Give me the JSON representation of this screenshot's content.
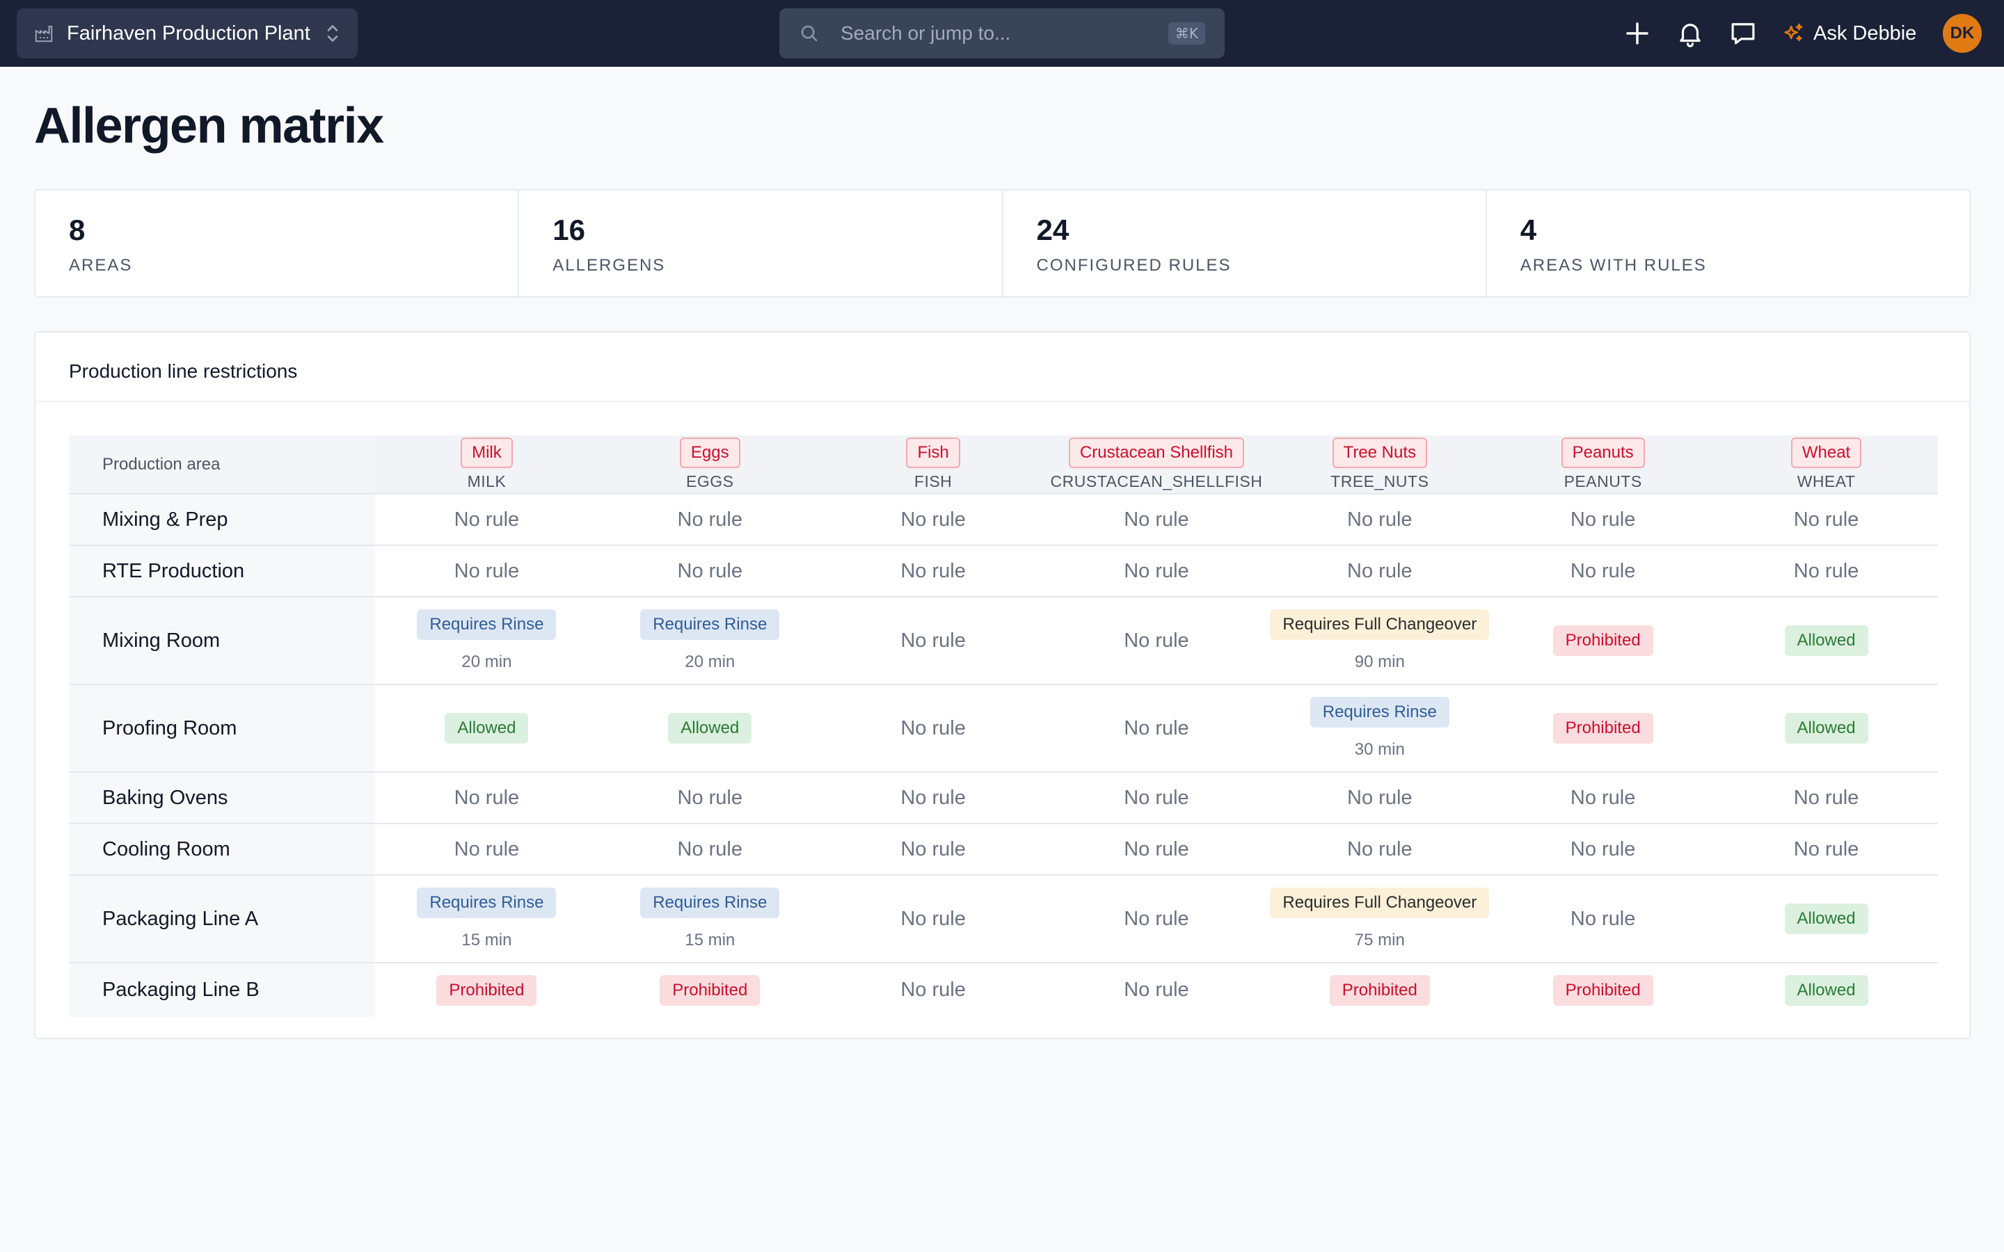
{
  "topbar": {
    "workspace_name": "Fairhaven Production Plant",
    "search_placeholder": "Search or jump to...",
    "search_shortcut": "⌘K",
    "ask_label": "Ask Debbie",
    "avatar_initials": "DK",
    "icons": [
      "factory-icon",
      "chevron-updown-icon",
      "search-icon",
      "plus-icon",
      "bell-icon",
      "chat-icon",
      "sparkle-icon"
    ]
  },
  "page": {
    "title": "Allergen matrix"
  },
  "stats": [
    {
      "value": "8",
      "label": "Areas"
    },
    {
      "value": "16",
      "label": "Allergens"
    },
    {
      "value": "24",
      "label": "Configured rules"
    },
    {
      "value": "4",
      "label": "Areas with rules"
    }
  ],
  "matrix": {
    "card_title": "Production line restrictions",
    "area_header": "Production area",
    "allergens": [
      {
        "name": "Milk",
        "code": "MILK"
      },
      {
        "name": "Eggs",
        "code": "EGGS"
      },
      {
        "name": "Fish",
        "code": "FISH"
      },
      {
        "name": "Crustacean Shellfish",
        "code": "CRUSTACEAN_SHELLFISH"
      },
      {
        "name": "Tree Nuts",
        "code": "TREE_NUTS"
      },
      {
        "name": "Peanuts",
        "code": "PEANUTS"
      },
      {
        "name": "Wheat",
        "code": "WHEAT"
      }
    ],
    "rows": [
      {
        "area": "Mixing & Prep",
        "cells": [
          {
            "type": "none",
            "label": "No rule"
          },
          {
            "type": "none",
            "label": "No rule"
          },
          {
            "type": "none",
            "label": "No rule"
          },
          {
            "type": "none",
            "label": "No rule"
          },
          {
            "type": "none",
            "label": "No rule"
          },
          {
            "type": "none",
            "label": "No rule"
          },
          {
            "type": "none",
            "label": "No rule"
          }
        ]
      },
      {
        "area": "RTE Production",
        "cells": [
          {
            "type": "none",
            "label": "No rule"
          },
          {
            "type": "none",
            "label": "No rule"
          },
          {
            "type": "none",
            "label": "No rule"
          },
          {
            "type": "none",
            "label": "No rule"
          },
          {
            "type": "none",
            "label": "No rule"
          },
          {
            "type": "none",
            "label": "No rule"
          },
          {
            "type": "none",
            "label": "No rule"
          }
        ]
      },
      {
        "area": "Mixing Room",
        "cells": [
          {
            "type": "rinse",
            "label": "Requires Rinse",
            "duration": "20 min"
          },
          {
            "type": "rinse",
            "label": "Requires Rinse",
            "duration": "20 min"
          },
          {
            "type": "none",
            "label": "No rule"
          },
          {
            "type": "none",
            "label": "No rule"
          },
          {
            "type": "full",
            "label": "Requires Full Changeover",
            "duration": "90 min"
          },
          {
            "type": "prohib",
            "label": "Prohibited"
          },
          {
            "type": "allow",
            "label": "Allowed"
          }
        ]
      },
      {
        "area": "Proofing Room",
        "cells": [
          {
            "type": "allow",
            "label": "Allowed"
          },
          {
            "type": "allow",
            "label": "Allowed"
          },
          {
            "type": "none",
            "label": "No rule"
          },
          {
            "type": "none",
            "label": "No rule"
          },
          {
            "type": "rinse",
            "label": "Requires Rinse",
            "duration": "30 min"
          },
          {
            "type": "prohib",
            "label": "Prohibited"
          },
          {
            "type": "allow",
            "label": "Allowed"
          }
        ]
      },
      {
        "area": "Baking Ovens",
        "cells": [
          {
            "type": "none",
            "label": "No rule"
          },
          {
            "type": "none",
            "label": "No rule"
          },
          {
            "type": "none",
            "label": "No rule"
          },
          {
            "type": "none",
            "label": "No rule"
          },
          {
            "type": "none",
            "label": "No rule"
          },
          {
            "type": "none",
            "label": "No rule"
          },
          {
            "type": "none",
            "label": "No rule"
          }
        ]
      },
      {
        "area": "Cooling Room",
        "cells": [
          {
            "type": "none",
            "label": "No rule"
          },
          {
            "type": "none",
            "label": "No rule"
          },
          {
            "type": "none",
            "label": "No rule"
          },
          {
            "type": "none",
            "label": "No rule"
          },
          {
            "type": "none",
            "label": "No rule"
          },
          {
            "type": "none",
            "label": "No rule"
          },
          {
            "type": "none",
            "label": "No rule"
          }
        ]
      },
      {
        "area": "Packaging Line A",
        "cells": [
          {
            "type": "rinse",
            "label": "Requires Rinse",
            "duration": "15 min"
          },
          {
            "type": "rinse",
            "label": "Requires Rinse",
            "duration": "15 min"
          },
          {
            "type": "none",
            "label": "No rule"
          },
          {
            "type": "none",
            "label": "No rule"
          },
          {
            "type": "full",
            "label": "Requires Full Changeover",
            "duration": "75 min"
          },
          {
            "type": "none",
            "label": "No rule"
          },
          {
            "type": "allow",
            "label": "Allowed"
          }
        ]
      },
      {
        "area": "Packaging Line B",
        "cells": [
          {
            "type": "prohib",
            "label": "Prohibited"
          },
          {
            "type": "prohib",
            "label": "Prohibited"
          },
          {
            "type": "none",
            "label": "No rule"
          },
          {
            "type": "none",
            "label": "No rule"
          },
          {
            "type": "prohib",
            "label": "Prohibited"
          },
          {
            "type": "prohib",
            "label": "Prohibited"
          },
          {
            "type": "allow",
            "label": "Allowed"
          }
        ]
      }
    ]
  },
  "colors": {
    "topbar_bg": "#1b2136",
    "accent_orange": "#e07b14",
    "allergen_red": "#c8102e",
    "rinse_blue": "#2f5c96",
    "allowed_green": "#2b7a36",
    "full_changeover_bg": "#fdf0d9"
  }
}
